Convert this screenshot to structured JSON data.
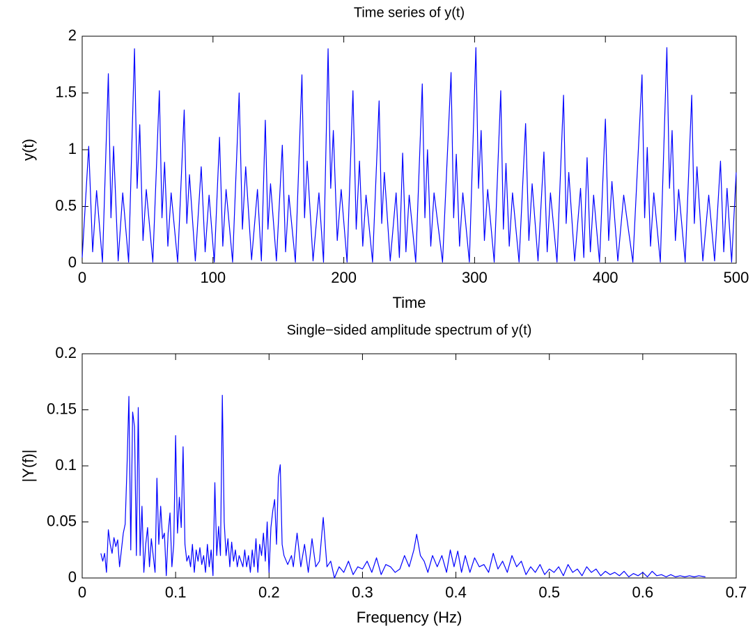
{
  "chart_data": [
    {
      "type": "line",
      "title": "Time series of y(t)",
      "xlabel": "Time",
      "ylabel": "y(t)",
      "color": "#0000ff",
      "xlim": [
        0,
        500
      ],
      "ylim": [
        0,
        2
      ],
      "xticks": [
        0,
        100,
        200,
        300,
        400,
        500
      ],
      "yticks": [
        0,
        0.5,
        1,
        1.5,
        2
      ],
      "x": [
        0,
        5,
        8,
        11,
        15.5,
        20,
        22,
        24,
        27.5,
        31,
        35.5,
        40,
        42,
        44,
        46.5,
        49,
        54,
        59,
        61,
        63,
        65.5,
        68,
        73,
        78,
        80,
        82,
        86.5,
        91,
        94,
        97,
        101,
        105,
        107.5,
        110,
        115,
        120,
        122.5,
        125,
        129.5,
        134,
        137,
        140,
        142,
        144,
        148.5,
        153,
        155.5,
        158,
        163,
        168,
        170,
        172,
        176.5,
        181,
        184.5,
        188,
        190,
        192,
        195,
        198,
        202.5,
        207,
        209.5,
        212,
        214.5,
        217,
        222,
        227,
        229,
        231,
        235.5,
        240,
        242.5,
        245,
        247.5,
        250,
        255,
        260,
        262,
        264,
        266.5,
        269,
        275.5,
        282,
        284,
        286,
        288.5,
        291,
        296,
        301,
        303,
        305,
        307.5,
        310,
        315,
        320,
        322,
        324,
        326.5,
        329,
        334,
        339,
        341.5,
        344,
        348.5,
        353,
        355.5,
        358,
        363,
        368,
        370,
        372,
        376.5,
        381,
        383.5,
        386,
        388.5,
        391,
        395.5,
        400,
        402.5,
        405,
        409.5,
        414,
        421,
        428,
        430,
        432,
        434.5,
        437,
        442,
        447,
        449,
        451,
        453.5,
        456,
        461,
        466,
        468,
        470,
        474.5,
        479,
        483.5,
        488,
        490.5,
        493,
        496.5,
        500
      ],
      "values": [
        0.05,
        1.03,
        0.1,
        0.64,
        0.01,
        1.67,
        0.4,
        1.03,
        0.02,
        0.62,
        0.01,
        1.89,
        0.66,
        1.22,
        0.2,
        0.65,
        0.01,
        1.52,
        0.4,
        0.89,
        0.15,
        0.62,
        0.01,
        1.35,
        0.35,
        0.78,
        0.02,
        0.85,
        0.1,
        0.6,
        0.01,
        1.11,
        0.15,
        0.65,
        0.01,
        1.5,
        0.3,
        0.85,
        0.03,
        0.65,
        0.02,
        1.26,
        0.3,
        0.7,
        0.02,
        1.04,
        0.1,
        0.6,
        0.01,
        1.66,
        0.4,
        0.9,
        0.02,
        0.62,
        0.01,
        1.89,
        0.66,
        1.17,
        0.2,
        0.65,
        0.01,
        1.52,
        0.3,
        0.9,
        0.15,
        0.6,
        0.01,
        1.43,
        0.35,
        0.8,
        0.02,
        0.62,
        0.05,
        0.97,
        0.1,
        0.6,
        0.01,
        1.58,
        0.4,
        1.0,
        0.15,
        0.62,
        0.01,
        1.68,
        0.4,
        0.96,
        0.15,
        0.62,
        0.01,
        1.9,
        0.66,
        1.17,
        0.2,
        0.65,
        0.01,
        1.52,
        0.3,
        0.88,
        0.15,
        0.62,
        0.01,
        1.23,
        0.2,
        0.7,
        0.02,
        0.98,
        0.1,
        0.62,
        0.01,
        1.48,
        0.35,
        0.8,
        0.02,
        0.66,
        0.05,
        0.93,
        0.1,
        0.6,
        0.01,
        1.27,
        0.2,
        0.72,
        0.02,
        0.6,
        0.01,
        1.66,
        0.4,
        1.02,
        0.15,
        0.62,
        0.01,
        1.9,
        0.66,
        1.17,
        0.2,
        0.65,
        0.01,
        1.48,
        0.35,
        0.85,
        0.02,
        0.6,
        0.02,
        0.9,
        0.1,
        0.66,
        0.01,
        0.8
      ]
    },
    {
      "type": "line",
      "title": "Single−sided amplitude spectrum of y(t)",
      "xlabel": "Frequency (Hz)",
      "ylabel": "|Y(f)|",
      "color": "#0000ff",
      "xlim": [
        0,
        0.7
      ],
      "ylim": [
        0,
        0.2
      ],
      "xticks": [
        0,
        0.1,
        0.2,
        0.3,
        0.4,
        0.5,
        0.6,
        0.7
      ],
      "yticks": [
        0,
        0.05,
        0.1,
        0.15,
        0.2
      ],
      "x": [
        0.02,
        0.022,
        0.024,
        0.026,
        0.028,
        0.03,
        0.032,
        0.034,
        0.036,
        0.038,
        0.04,
        0.042,
        0.044,
        0.046,
        0.048,
        0.05,
        0.052,
        0.054,
        0.056,
        0.058,
        0.06,
        0.062,
        0.064,
        0.066,
        0.068,
        0.07,
        0.072,
        0.074,
        0.076,
        0.078,
        0.08,
        0.082,
        0.084,
        0.086,
        0.088,
        0.09,
        0.092,
        0.094,
        0.096,
        0.098,
        0.1,
        0.102,
        0.104,
        0.106,
        0.108,
        0.11,
        0.112,
        0.114,
        0.116,
        0.118,
        0.12,
        0.122,
        0.124,
        0.126,
        0.128,
        0.13,
        0.132,
        0.134,
        0.136,
        0.138,
        0.14,
        0.142,
        0.144,
        0.146,
        0.148,
        0.15,
        0.152,
        0.154,
        0.156,
        0.158,
        0.16,
        0.162,
        0.164,
        0.166,
        0.168,
        0.17,
        0.172,
        0.174,
        0.176,
        0.178,
        0.18,
        0.182,
        0.184,
        0.186,
        0.188,
        0.19,
        0.192,
        0.194,
        0.196,
        0.198,
        0.2,
        0.202,
        0.204,
        0.206,
        0.208,
        0.21,
        0.212,
        0.214,
        0.216,
        0.22,
        0.224,
        0.226,
        0.23,
        0.234,
        0.238,
        0.242,
        0.246,
        0.25,
        0.254,
        0.258,
        0.262,
        0.266,
        0.27,
        0.275,
        0.28,
        0.285,
        0.29,
        0.295,
        0.3,
        0.305,
        0.31,
        0.315,
        0.32,
        0.325,
        0.33,
        0.335,
        0.34,
        0.345,
        0.35,
        0.355,
        0.358,
        0.362,
        0.366,
        0.37,
        0.375,
        0.38,
        0.385,
        0.39,
        0.394,
        0.398,
        0.402,
        0.406,
        0.41,
        0.415,
        0.42,
        0.425,
        0.43,
        0.435,
        0.44,
        0.445,
        0.45,
        0.455,
        0.46,
        0.465,
        0.47,
        0.475,
        0.48,
        0.485,
        0.49,
        0.495,
        0.5,
        0.505,
        0.51,
        0.515,
        0.52,
        0.525,
        0.53,
        0.535,
        0.54,
        0.545,
        0.55,
        0.555,
        0.56,
        0.565,
        0.57,
        0.575,
        0.58,
        0.585,
        0.59,
        0.595,
        0.6,
        0.605,
        0.61,
        0.615,
        0.62,
        0.625,
        0.63,
        0.635,
        0.64,
        0.645,
        0.65,
        0.655,
        0.66,
        0.667
      ],
      "values": [
        0.022,
        0.015,
        0.022,
        0.005,
        0.043,
        0.03,
        0.022,
        0.036,
        0.028,
        0.034,
        0.01,
        0.025,
        0.04,
        0.048,
        0.1,
        0.162,
        0.025,
        0.148,
        0.135,
        0.02,
        0.152,
        0.02,
        0.064,
        0.005,
        0.03,
        0.045,
        0.01,
        0.035,
        0.02,
        0.005,
        0.089,
        0.03,
        0.064,
        0.035,
        0.04,
        0.002,
        0.04,
        0.058,
        0.01,
        0.03,
        0.127,
        0.04,
        0.072,
        0.045,
        0.117,
        0.03,
        0.015,
        0.02,
        0.01,
        0.03,
        0.005,
        0.025,
        0.015,
        0.027,
        0.012,
        0.02,
        0.005,
        0.03,
        0.01,
        0.025,
        0.002,
        0.085,
        0.02,
        0.046,
        0.02,
        0.163,
        0.05,
        0.02,
        0.035,
        0.01,
        0.032,
        0.015,
        0.025,
        0.01,
        0.02,
        0.015,
        0.01,
        0.025,
        0.01,
        0.02,
        0.005,
        0.025,
        0.01,
        0.035,
        0.005,
        0.03,
        0.02,
        0.04,
        0.015,
        0.05,
        0.005,
        0.045,
        0.06,
        0.07,
        0.03,
        0.09,
        0.101,
        0.03,
        0.02,
        0.012,
        0.02,
        0.01,
        0.04,
        0.01,
        0.03,
        0.005,
        0.035,
        0.01,
        0.015,
        0.054,
        0.01,
        0.015,
        0.0,
        0.01,
        0.005,
        0.015,
        0.003,
        0.01,
        0.008,
        0.015,
        0.005,
        0.018,
        0.003,
        0.012,
        0.01,
        0.005,
        0.008,
        0.02,
        0.01,
        0.025,
        0.039,
        0.02,
        0.015,
        0.005,
        0.02,
        0.01,
        0.02,
        0.005,
        0.025,
        0.01,
        0.024,
        0.005,
        0.02,
        0.005,
        0.018,
        0.01,
        0.012,
        0.005,
        0.022,
        0.008,
        0.015,
        0.005,
        0.02,
        0.01,
        0.015,
        0.003,
        0.01,
        0.005,
        0.012,
        0.003,
        0.008,
        0.005,
        0.01,
        0.002,
        0.012,
        0.005,
        0.008,
        0.002,
        0.01,
        0.005,
        0.008,
        0.002,
        0.006,
        0.003,
        0.005,
        0.002,
        0.006,
        0.001,
        0.004,
        0.002,
        0.005,
        0.001,
        0.006,
        0.002,
        0.003,
        0.001,
        0.003,
        0.001,
        0.002,
        0.001,
        0.002,
        0.001,
        0.002,
        0.001
      ]
    }
  ]
}
